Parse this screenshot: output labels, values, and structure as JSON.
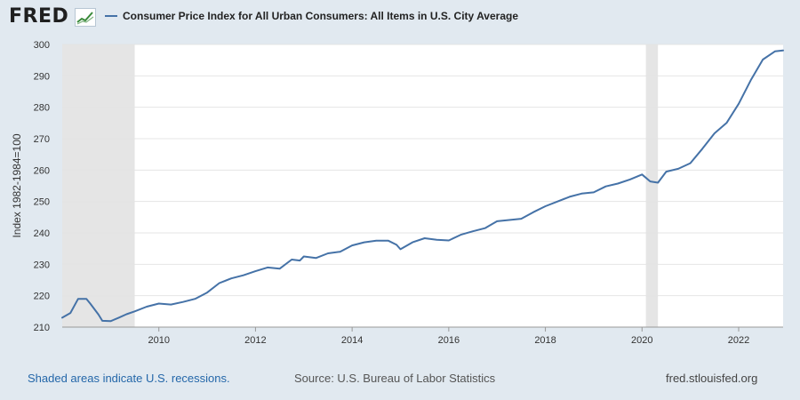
{
  "header": {
    "logo_text": "FRED",
    "logo_icon": "trend-chart-icon"
  },
  "chart_data": {
    "type": "line",
    "title": "Consumer Price Index for All Urban Consumers: All Items in U.S. City Average",
    "ylabel": "Index 1982-1984=100",
    "xlabel": "",
    "xlim": [
      2008.0,
      2022.92
    ],
    "ylim": [
      210,
      300
    ],
    "x_ticks": [
      2010,
      2012,
      2014,
      2016,
      2018,
      2020,
      2022
    ],
    "y_ticks": [
      210,
      220,
      230,
      240,
      250,
      260,
      270,
      280,
      290,
      300
    ],
    "grid": true,
    "legend_position": "top",
    "line_color": "#4572a7",
    "recessions": [
      {
        "start": 2008.0,
        "end": 2009.5
      },
      {
        "start": 2020.08,
        "end": 2020.33
      }
    ],
    "series": [
      {
        "name": "Consumer Price Index for All Urban Consumers: All Items in U.S. City Average",
        "x": [
          2008.0,
          2008.17,
          2008.33,
          2008.5,
          2008.58,
          2008.75,
          2008.83,
          2009.0,
          2009.17,
          2009.33,
          2009.5,
          2009.75,
          2010.0,
          2010.25,
          2010.5,
          2010.75,
          2011.0,
          2011.25,
          2011.5,
          2011.75,
          2012.0,
          2012.25,
          2012.5,
          2012.75,
          2012.92,
          2013.0,
          2013.25,
          2013.5,
          2013.75,
          2014.0,
          2014.25,
          2014.5,
          2014.75,
          2014.92,
          2015.0,
          2015.25,
          2015.5,
          2015.75,
          2016.0,
          2016.25,
          2016.5,
          2016.75,
          2017.0,
          2017.25,
          2017.5,
          2017.75,
          2018.0,
          2018.25,
          2018.5,
          2018.75,
          2019.0,
          2019.25,
          2019.5,
          2019.75,
          2020.0,
          2020.17,
          2020.33,
          2020.5,
          2020.75,
          2021.0,
          2021.25,
          2021.5,
          2021.75,
          2022.0,
          2022.25,
          2022.5,
          2022.75,
          2022.92
        ],
        "y": [
          213.0,
          214.5,
          219.0,
          219.0,
          217.5,
          214.0,
          212.0,
          211.9,
          213.0,
          214.1,
          215.0,
          216.5,
          217.5,
          217.2,
          218.0,
          219.0,
          221.0,
          224.0,
          225.5,
          226.5,
          227.8,
          229.0,
          228.6,
          231.5,
          231.2,
          232.5,
          232.0,
          233.5,
          234.0,
          236.0,
          237.0,
          237.5,
          237.5,
          236.2,
          234.8,
          237.0,
          238.3,
          237.8,
          237.6,
          239.4,
          240.5,
          241.5,
          243.7,
          244.1,
          244.5,
          246.6,
          248.5,
          250.0,
          251.5,
          252.5,
          252.9,
          254.8,
          255.7,
          257.0,
          258.6,
          256.4,
          256.0,
          259.5,
          260.4,
          262.2,
          266.8,
          271.7,
          275.0,
          281.1,
          288.6,
          295.2,
          297.8,
          298.1
        ]
      }
    ]
  },
  "footer": {
    "recession_note": "Shaded areas indicate U.S. recessions.",
    "source": "Source: U.S. Bureau of Labor Statistics",
    "site": "fred.stlouisfed.org"
  }
}
